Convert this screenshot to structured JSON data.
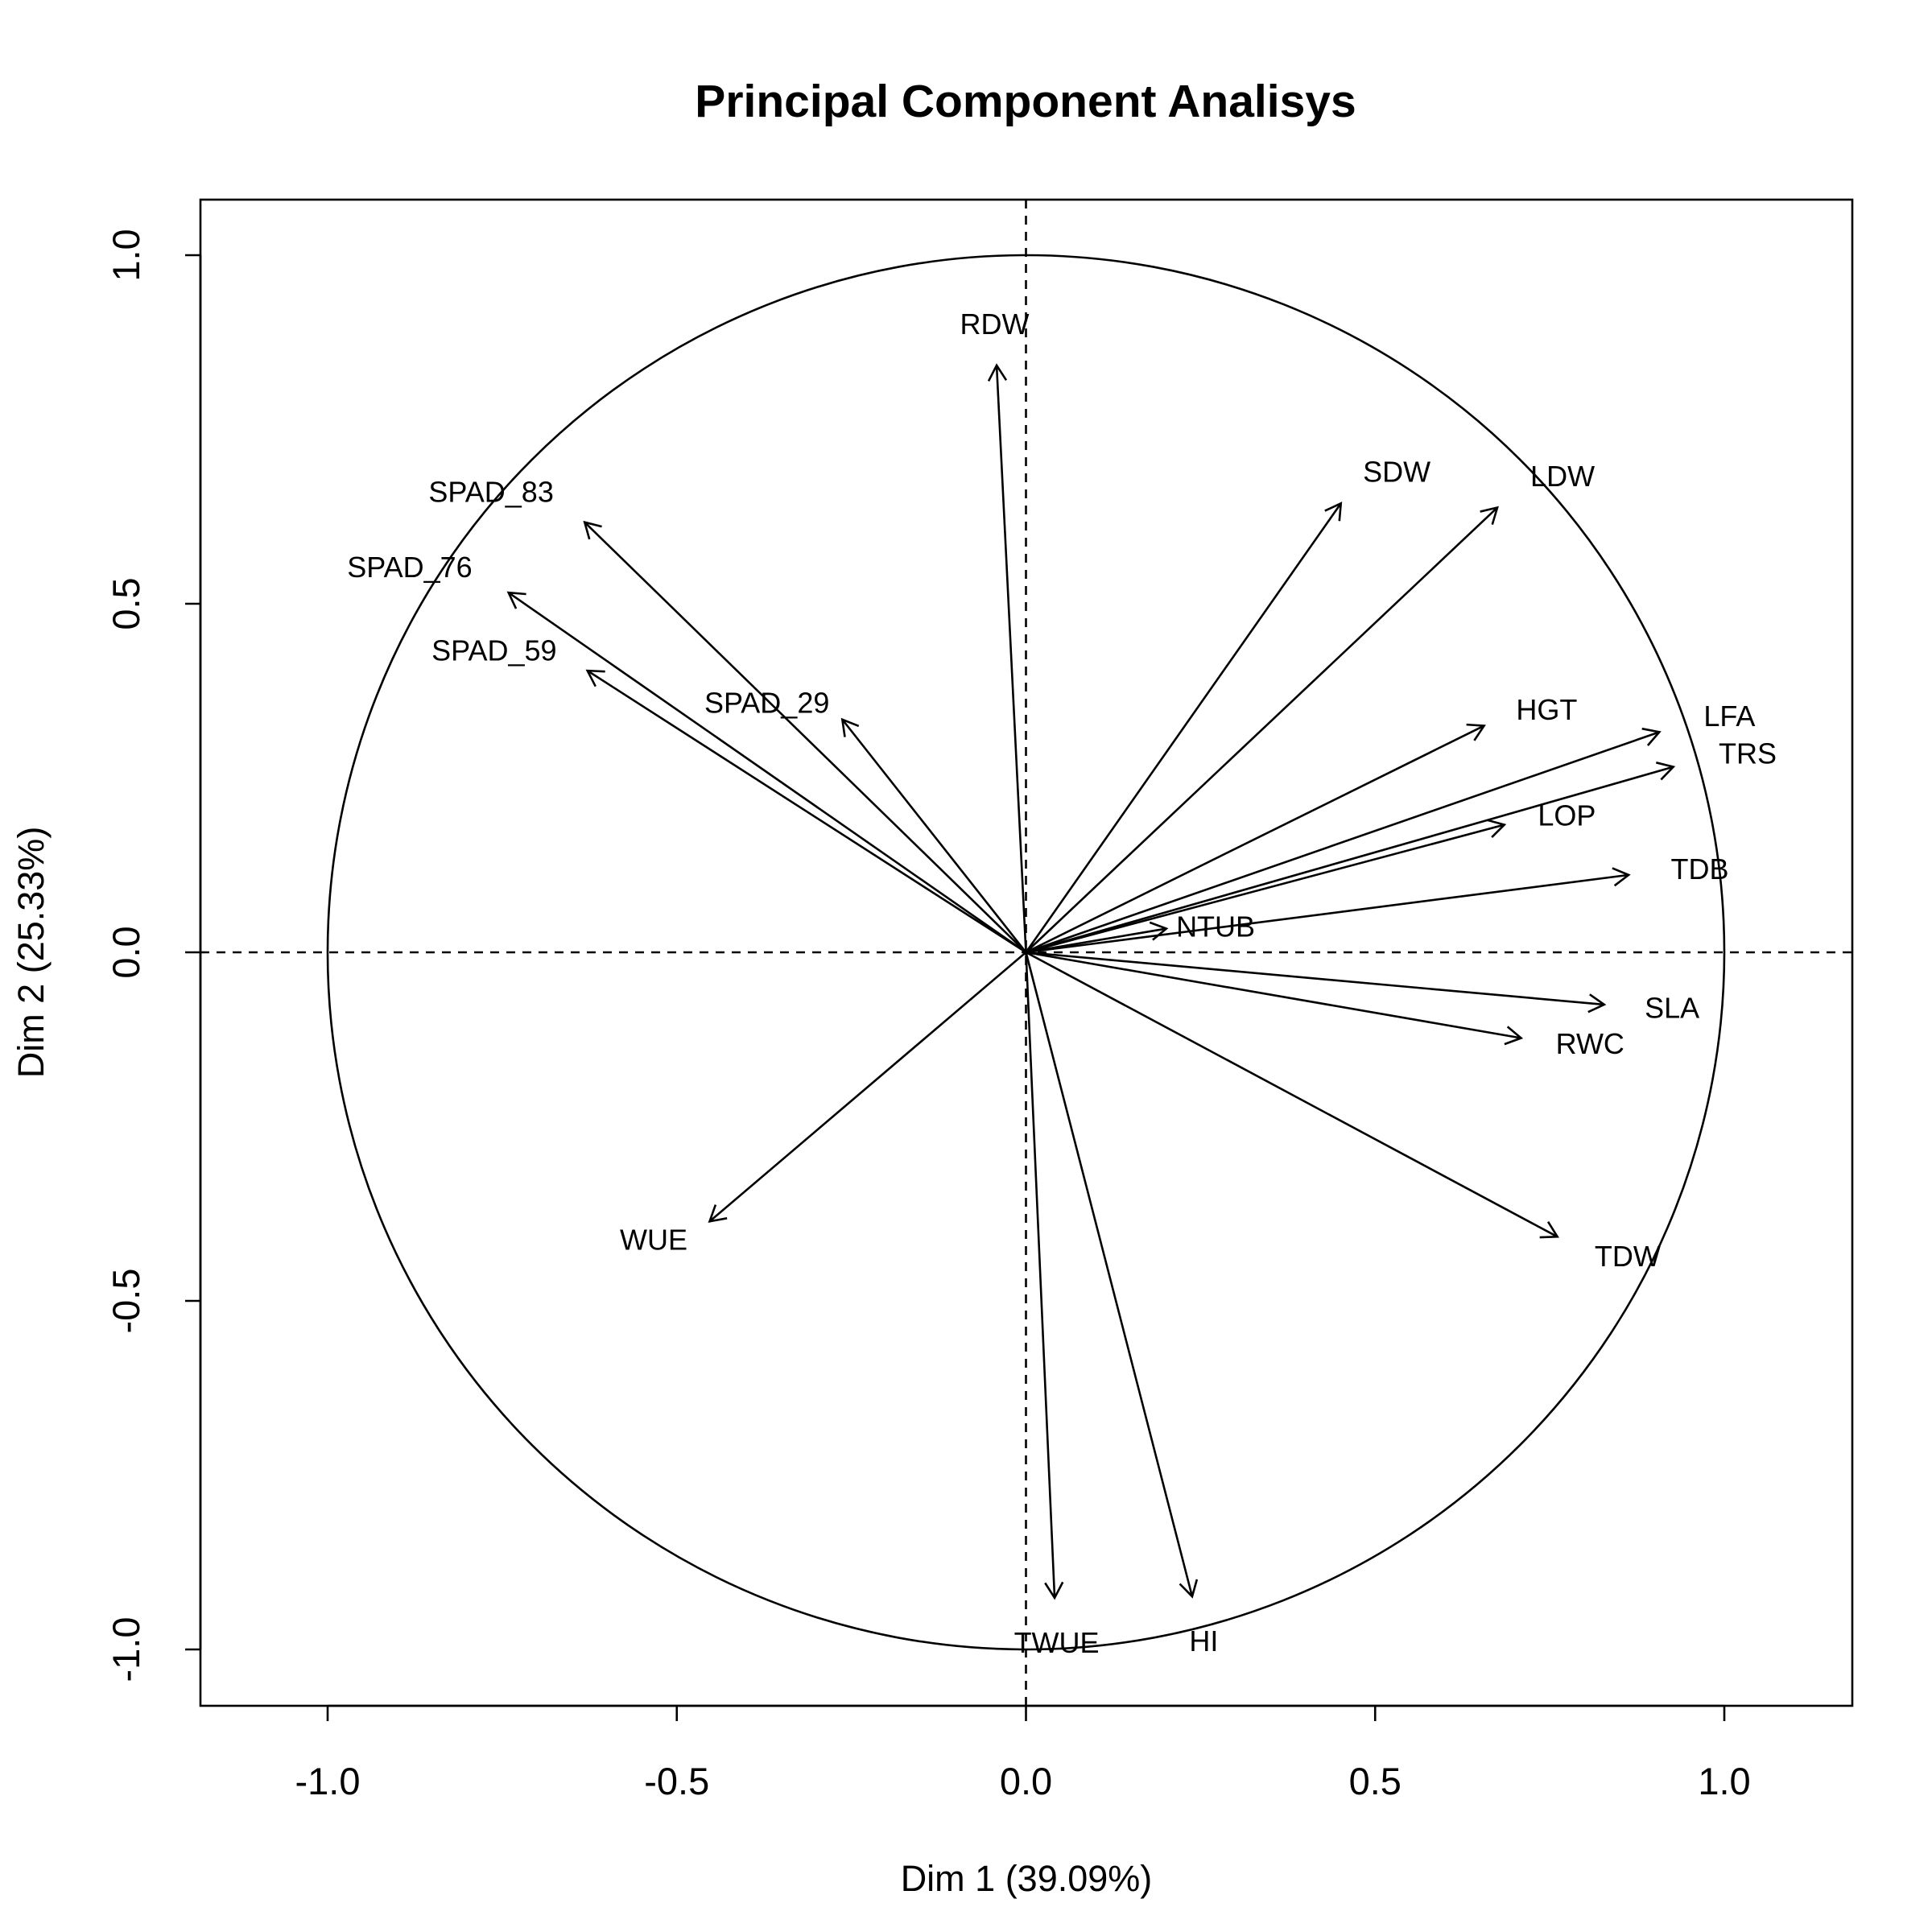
{
  "chart_data": {
    "type": "scatter",
    "subtype": "pca-correlation-circle",
    "title": "Principal Component Analisys",
    "xlabel": "Dim 1 (39.09%)",
    "ylabel": "Dim 2 (25.33%)",
    "xlim": [
      -1.2,
      1.2
    ],
    "ylim": [
      -1.08,
      1.08
    ],
    "xticks": [
      -1.0,
      -0.5,
      0.0,
      0.5,
      1.0
    ],
    "yticks": [
      -1.0,
      -0.5,
      0.0,
      0.5,
      1.0
    ],
    "xtick_labels": [
      "-1.0",
      "-0.5",
      "0.0",
      "0.5",
      "1.0"
    ],
    "ytick_labels": [
      "-1.0",
      "-0.5",
      "0.0",
      "0.5",
      "1.0"
    ],
    "grid": false,
    "unit_circle": true,
    "reference_lines": "dashed at x=0 and y=0",
    "variables": [
      {
        "name": "RDW",
        "x": -0.042,
        "y": 0.842
      },
      {
        "name": "SDW",
        "x": 0.451,
        "y": 0.644
      },
      {
        "name": "LDW",
        "x": 0.675,
        "y": 0.638
      },
      {
        "name": "SPAD_83",
        "x": -0.632,
        "y": 0.617
      },
      {
        "name": "SPAD_76",
        "x": -0.741,
        "y": 0.516
      },
      {
        "name": "SPAD_59",
        "x": -0.628,
        "y": 0.404
      },
      {
        "name": "SPAD_29",
        "x": -0.263,
        "y": 0.334
      },
      {
        "name": "HGT",
        "x": 0.656,
        "y": 0.325
      },
      {
        "name": "LFA",
        "x": 0.907,
        "y": 0.316
      },
      {
        "name": "TRS",
        "x": 0.927,
        "y": 0.266
      },
      {
        "name": "LOP",
        "x": 0.685,
        "y": 0.183
      },
      {
        "name": "TDB",
        "x": 0.863,
        "y": 0.111
      },
      {
        "name": "NTUB",
        "x": 0.201,
        "y": 0.034
      },
      {
        "name": "SLA",
        "x": 0.828,
        "y": -0.075
      },
      {
        "name": "RWC",
        "x": 0.709,
        "y": -0.123
      },
      {
        "name": "TDW",
        "x": 0.761,
        "y": -0.408
      },
      {
        "name": "WUE",
        "x": -0.453,
        "y": -0.386
      },
      {
        "name": "TWUE",
        "x": 0.041,
        "y": -0.926
      },
      {
        "name": "HI",
        "x": 0.238,
        "y": -0.924
      }
    ]
  }
}
